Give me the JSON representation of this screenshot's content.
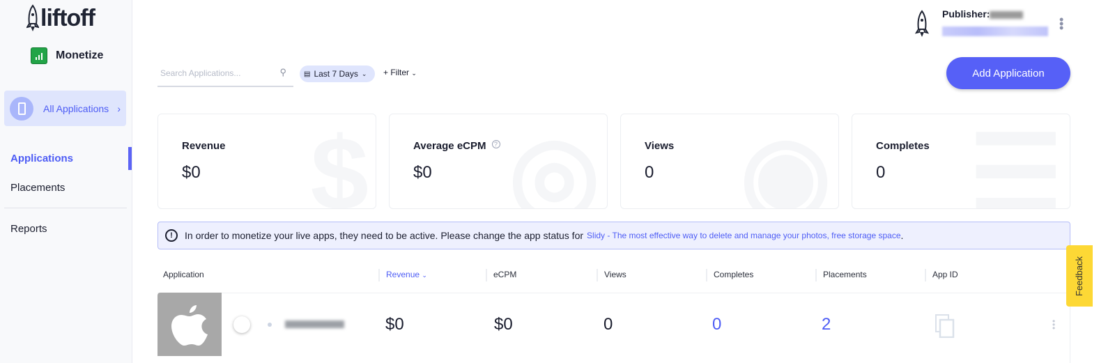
{
  "brand": {
    "logo": "liftoff",
    "product": "Monetize",
    "accent": "#5660f7"
  },
  "sidebar": {
    "all_apps": "All Applications",
    "items": [
      {
        "label": "Applications",
        "active": true
      },
      {
        "label": "Placements"
      },
      {
        "label": "Reports"
      }
    ]
  },
  "toolbar": {
    "search_placeholder": "Search Applications...",
    "date_range": "Last 7 Days",
    "filter": "+ Filter"
  },
  "header": {
    "publisher_label": "Publisher:",
    "add_button": "Add Application"
  },
  "stats": [
    {
      "label": "Revenue",
      "value": "$0",
      "icon": "dollar-icon"
    },
    {
      "label": "Average eCPM",
      "value": "$0",
      "icon": "target-icon",
      "help": "?"
    },
    {
      "label": "Views",
      "value": "0",
      "icon": "eye-icon"
    },
    {
      "label": "Completes",
      "value": "0",
      "icon": "list-check-icon"
    }
  ],
  "banner": {
    "text": "In order to monetize your live apps, they need to be active. Please change the app status for",
    "link": "Slidy - The most effective way to delete and manage your photos, free storage space",
    "end": "."
  },
  "table": {
    "columns": [
      "Application",
      "Revenue",
      "eCPM",
      "Views",
      "Completes",
      "Placements",
      "App ID"
    ],
    "sorted_column": "Revenue",
    "rows": [
      {
        "platform": "apple-icon",
        "revenue": "$0",
        "ecpm": "$0",
        "views": "0",
        "completes": "0",
        "placements": "2"
      }
    ]
  },
  "feedback": "Feedback"
}
